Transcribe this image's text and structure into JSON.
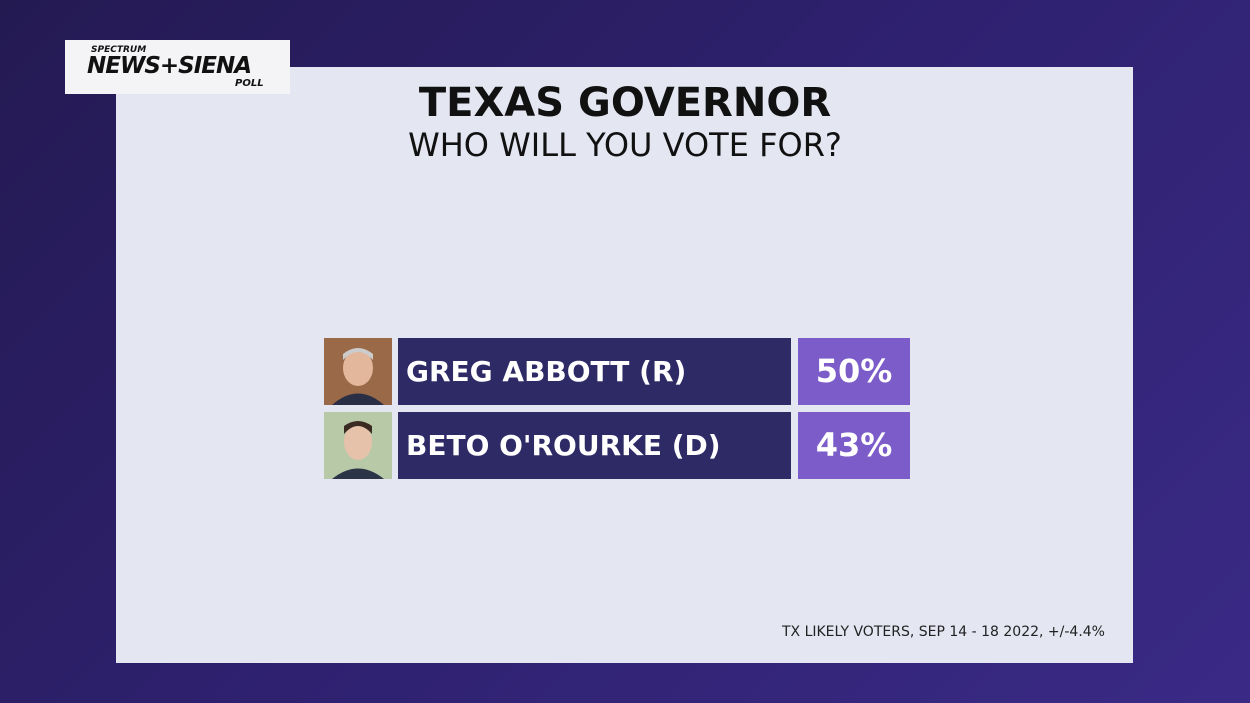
{
  "logo": {
    "top": "SPECTRUM",
    "main": "NEWS+SIENA",
    "bottom": "POLL"
  },
  "header": {
    "title": "TEXAS GOVERNOR",
    "subtitle": "WHO WILL YOU VOTE FOR?"
  },
  "results": [
    {
      "name": "GREG ABBOTT (R)",
      "value": "50%"
    },
    {
      "name": "BETO O'ROURKE (D)",
      "value": "43%"
    }
  ],
  "footnote": "TX LIKELY VOTERS, SEP 14 - 18 2022, +/-4.4%"
}
